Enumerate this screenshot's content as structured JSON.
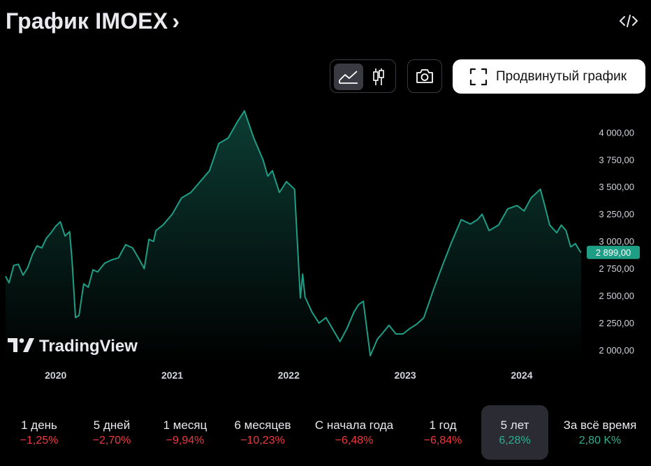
{
  "header": {
    "title": "График IMOEX",
    "chevron": "›"
  },
  "toolbar": {
    "area_icon": "area-chart-icon",
    "candle_icon": "candlestick-icon",
    "camera_icon": "camera-icon",
    "advanced_label": "Продвинутый график",
    "embed_icon": "code-icon"
  },
  "watermark": "TradingView",
  "colors": {
    "accent": "#1f9e86",
    "negative": "#f0383f",
    "positive": "#2dae91",
    "background": "#000000"
  },
  "chart_data": {
    "type": "area",
    "title": "График IMOEX",
    "x_ticks": [
      "2020",
      "2021",
      "2022",
      "2023",
      "2024"
    ],
    "x_tick_positions": [
      2020.0,
      2021.0,
      2022.0,
      2023.0,
      2024.0
    ],
    "xlim": [
      2019.57,
      2024.51
    ],
    "y_ticks": [
      "2 000,00",
      "2 250,00",
      "2 500,00",
      "2 750,00",
      "3 000,00",
      "3 250,00",
      "3 500,00",
      "3 750,00",
      "4 000,00"
    ],
    "y_tick_values": [
      2000,
      2250,
      2500,
      2750,
      3000,
      3250,
      3500,
      3750,
      4000
    ],
    "ylim": [
      1880,
      4320
    ],
    "last_value": 2899,
    "last_label": "2 899,00",
    "x": [
      2019.57,
      2019.6,
      2019.64,
      2019.68,
      2019.72,
      2019.76,
      2019.8,
      2019.84,
      2019.88,
      2019.92,
      2019.96,
      2020.0,
      2020.04,
      2020.08,
      2020.12,
      2020.14,
      2020.17,
      2020.2,
      2020.24,
      2020.28,
      2020.32,
      2020.36,
      2020.42,
      2020.48,
      2020.54,
      2020.6,
      2020.66,
      2020.72,
      2020.76,
      2020.8,
      2020.84,
      2020.86,
      2020.92,
      2021.0,
      2021.08,
      2021.16,
      2021.24,
      2021.32,
      2021.4,
      2021.48,
      2021.56,
      2021.62,
      2021.7,
      2021.78,
      2021.82,
      2021.86,
      2021.92,
      2021.98,
      2022.05,
      2022.1,
      2022.12,
      2022.14,
      2022.2,
      2022.26,
      2022.32,
      2022.38,
      2022.44,
      2022.5,
      2022.56,
      2022.6,
      2022.64,
      2022.7,
      2022.74,
      2022.76,
      2022.8,
      2022.86,
      2022.92,
      2022.98,
      2023.04,
      2023.1,
      2023.16,
      2023.24,
      2023.32,
      2023.4,
      2023.48,
      2023.56,
      2023.62,
      2023.66,
      2023.72,
      2023.8,
      2023.88,
      2023.96,
      2024.02,
      2024.08,
      2024.16,
      2024.2,
      2024.24,
      2024.3,
      2024.34,
      2024.38,
      2024.42,
      2024.46,
      2024.5,
      2024.51
    ],
    "y": [
      2680,
      2620,
      2780,
      2790,
      2690,
      2760,
      2880,
      2960,
      2940,
      3030,
      3080,
      3140,
      3180,
      3050,
      3090,
      2830,
      2300,
      2320,
      2610,
      2580,
      2740,
      2720,
      2800,
      2830,
      2850,
      2970,
      2940,
      2830,
      2750,
      3020,
      3000,
      3100,
      3150,
      3250,
      3400,
      3450,
      3550,
      3650,
      3900,
      3950,
      4100,
      4200,
      3950,
      3750,
      3600,
      3650,
      3450,
      3550,
      3480,
      2480,
      2700,
      2490,
      2350,
      2250,
      2300,
      2190,
      2080,
      2200,
      2350,
      2420,
      2450,
      1950,
      2050,
      2100,
      2150,
      2230,
      2150,
      2150,
      2200,
      2240,
      2300,
      2550,
      2780,
      3000,
      3200,
      3160,
      3200,
      3250,
      3100,
      3150,
      3300,
      3330,
      3280,
      3400,
      3480,
      3320,
      3150,
      3080,
      3150,
      3100,
      2950,
      2980,
      2910,
      2899
    ]
  },
  "periods": [
    {
      "label": "1 день",
      "change": "−1,25%",
      "sign": "neg"
    },
    {
      "label": "5 дней",
      "change": "−2,70%",
      "sign": "neg"
    },
    {
      "label": "1 месяц",
      "change": "−9,94%",
      "sign": "neg"
    },
    {
      "label": "6 месяцев",
      "change": "−10,23%",
      "sign": "neg"
    },
    {
      "label": "С начала года",
      "change": "−6,48%",
      "sign": "neg"
    },
    {
      "label": "1 год",
      "change": "−6,84%",
      "sign": "neg"
    },
    {
      "label": "5 лет",
      "change": "6,28%",
      "sign": "pos",
      "active": true
    },
    {
      "label": "За всё время",
      "change": "2,80 K%",
      "sign": "pos"
    }
  ]
}
